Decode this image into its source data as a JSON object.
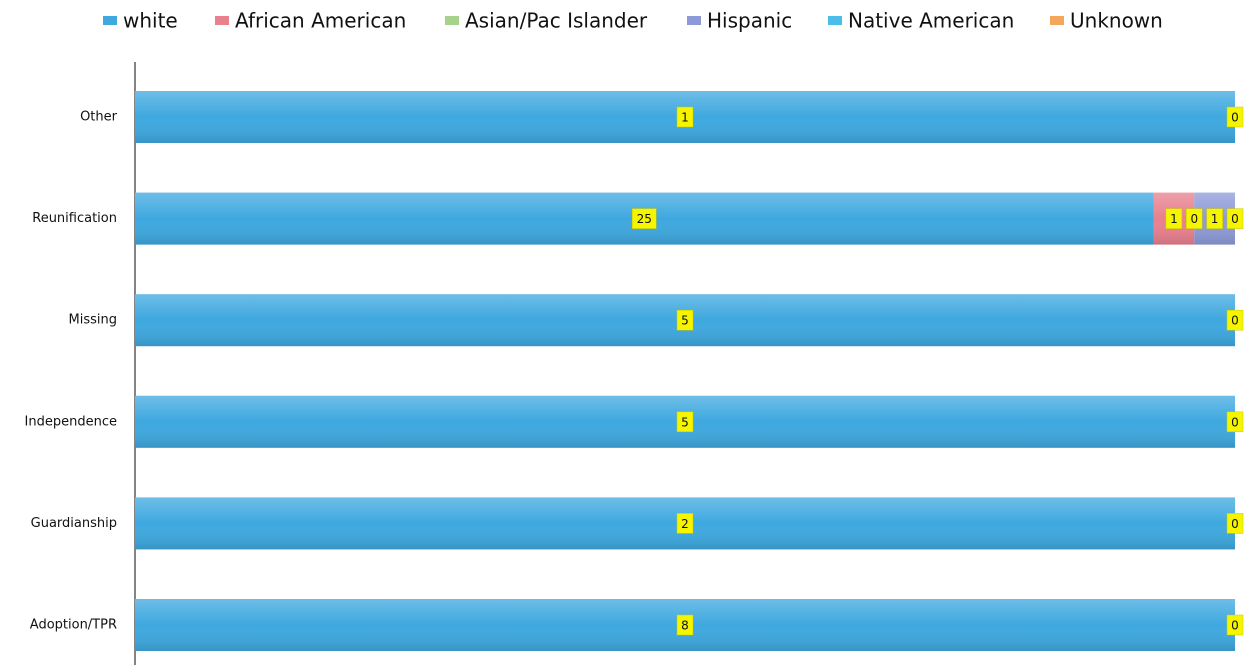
{
  "chart_data": {
    "type": "bar",
    "orientation": "horizontal",
    "stacked": "percent",
    "categories": [
      "Other",
      "Reunification",
      "Missing",
      "Independence",
      "Guardianship",
      "Adoption/TPR"
    ],
    "series": [
      {
        "name": "white",
        "color": "#3ea8df",
        "values": [
          1,
          25,
          5,
          5,
          2,
          8
        ]
      },
      {
        "name": "African American",
        "color": "#e8808e",
        "values": [
          null,
          1,
          null,
          null,
          null,
          null
        ]
      },
      {
        "name": "Asian/Pac Islander",
        "color": "#a6d28c",
        "values": [
          null,
          0,
          null,
          null,
          null,
          null
        ]
      },
      {
        "name": "Hispanic",
        "color": "#8e9ad8",
        "values": [
          null,
          1,
          null,
          null,
          null,
          null
        ]
      },
      {
        "name": "Native American",
        "color": "#4bbde8",
        "values": [
          null,
          null,
          null,
          null,
          null,
          null
        ]
      },
      {
        "name": "Unknown",
        "color": "#f4a65a",
        "values": [
          0,
          0,
          0,
          0,
          0,
          0
        ]
      }
    ],
    "legend": "top"
  }
}
